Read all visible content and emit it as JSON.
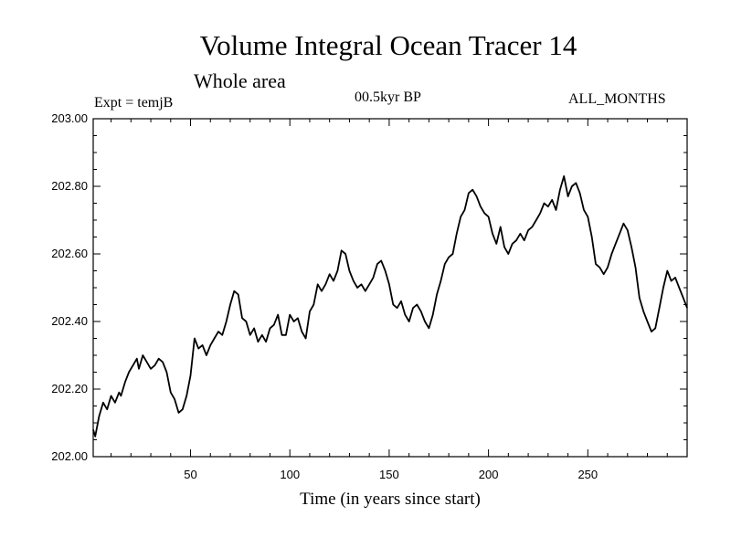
{
  "header": {
    "title": "Volume Integral Ocean Tracer 14",
    "subtitle": "Whole area",
    "experiment": "Expt = temjB",
    "period": "00.5kyr BP",
    "months": "ALL_MONTHS"
  },
  "chart_data": {
    "type": "line",
    "title": "Volume Integral Ocean Tracer 14",
    "subtitle": "Whole area",
    "xlabel": "Time (in years since start)",
    "ylabel": "",
    "xlim": [
      1,
      300
    ],
    "ylim": [
      202.0,
      203.0
    ],
    "xticks": [
      50,
      100,
      150,
      200,
      250
    ],
    "xtick_labels": [
      "50",
      "100",
      "150",
      "200",
      "250"
    ],
    "yticks": [
      202.0,
      202.2,
      202.4,
      202.6,
      202.8,
      203.0
    ],
    "ytick_labels": [
      "202.00",
      "202.20",
      "202.40",
      "202.60",
      "202.80",
      "203.00"
    ],
    "grid": false,
    "series": [
      {
        "color": "#000000",
        "x": [
          1,
          2,
          4,
          6,
          8,
          10,
          12,
          14,
          15,
          17,
          19,
          21,
          23,
          24,
          26,
          28,
          30,
          32,
          34,
          36,
          38,
          40,
          42,
          44,
          46,
          48,
          50,
          52,
          54,
          56,
          58,
          60,
          62,
          64,
          66,
          68,
          70,
          72,
          74,
          76,
          78,
          80,
          82,
          84,
          86,
          88,
          90,
          92,
          94,
          96,
          98,
          100,
          102,
          104,
          106,
          108,
          110,
          112,
          114,
          116,
          118,
          120,
          122,
          124,
          126,
          128,
          130,
          132,
          134,
          136,
          138,
          140,
          142,
          144,
          146,
          148,
          150,
          152,
          154,
          156,
          158,
          160,
          162,
          164,
          166,
          168,
          170,
          172,
          174,
          176,
          178,
          180,
          182,
          184,
          186,
          188,
          190,
          192,
          194,
          196,
          198,
          200,
          202,
          204,
          206,
          208,
          210,
          212,
          214,
          216,
          218,
          220,
          222,
          224,
          226,
          228,
          230,
          232,
          234,
          236,
          238,
          240,
          242,
          244,
          246,
          248,
          250,
          252,
          254,
          256,
          258,
          260,
          262,
          264,
          266,
          268,
          270,
          272,
          274,
          276,
          278,
          280,
          282,
          284,
          286,
          288,
          290,
          292,
          294,
          296,
          298,
          300
        ],
        "y": [
          202.08,
          202.06,
          202.12,
          202.16,
          202.14,
          202.18,
          202.16,
          202.19,
          202.18,
          202.22,
          202.25,
          202.27,
          202.29,
          202.26,
          202.3,
          202.28,
          202.26,
          202.27,
          202.29,
          202.28,
          202.25,
          202.19,
          202.17,
          202.13,
          202.14,
          202.18,
          202.24,
          202.35,
          202.32,
          202.33,
          202.3,
          202.33,
          202.35,
          202.37,
          202.36,
          202.4,
          202.45,
          202.49,
          202.48,
          202.41,
          202.4,
          202.36,
          202.38,
          202.34,
          202.36,
          202.34,
          202.38,
          202.39,
          202.42,
          202.36,
          202.36,
          202.42,
          202.4,
          202.41,
          202.37,
          202.35,
          202.43,
          202.45,
          202.51,
          202.49,
          202.51,
          202.54,
          202.52,
          202.55,
          202.61,
          202.6,
          202.55,
          202.52,
          202.5,
          202.51,
          202.49,
          202.51,
          202.53,
          202.57,
          202.58,
          202.55,
          202.51,
          202.45,
          202.44,
          202.46,
          202.42,
          202.4,
          202.44,
          202.45,
          202.43,
          202.4,
          202.38,
          202.42,
          202.48,
          202.52,
          202.57,
          202.59,
          202.6,
          202.66,
          202.71,
          202.73,
          202.78,
          202.79,
          202.77,
          202.74,
          202.72,
          202.71,
          202.66,
          202.63,
          202.68,
          202.62,
          202.6,
          202.63,
          202.64,
          202.66,
          202.64,
          202.67,
          202.68,
          202.7,
          202.72,
          202.75,
          202.74,
          202.76,
          202.73,
          202.79,
          202.83,
          202.77,
          202.8,
          202.81,
          202.78,
          202.73,
          202.71,
          202.65,
          202.57,
          202.56,
          202.54,
          202.56,
          202.6,
          202.63,
          202.66,
          202.69,
          202.67,
          202.62,
          202.56,
          202.47,
          202.43,
          202.4,
          202.37,
          202.38,
          202.44,
          202.5,
          202.55,
          202.52,
          202.53,
          202.5,
          202.47,
          202.44
        ]
      }
    ]
  }
}
